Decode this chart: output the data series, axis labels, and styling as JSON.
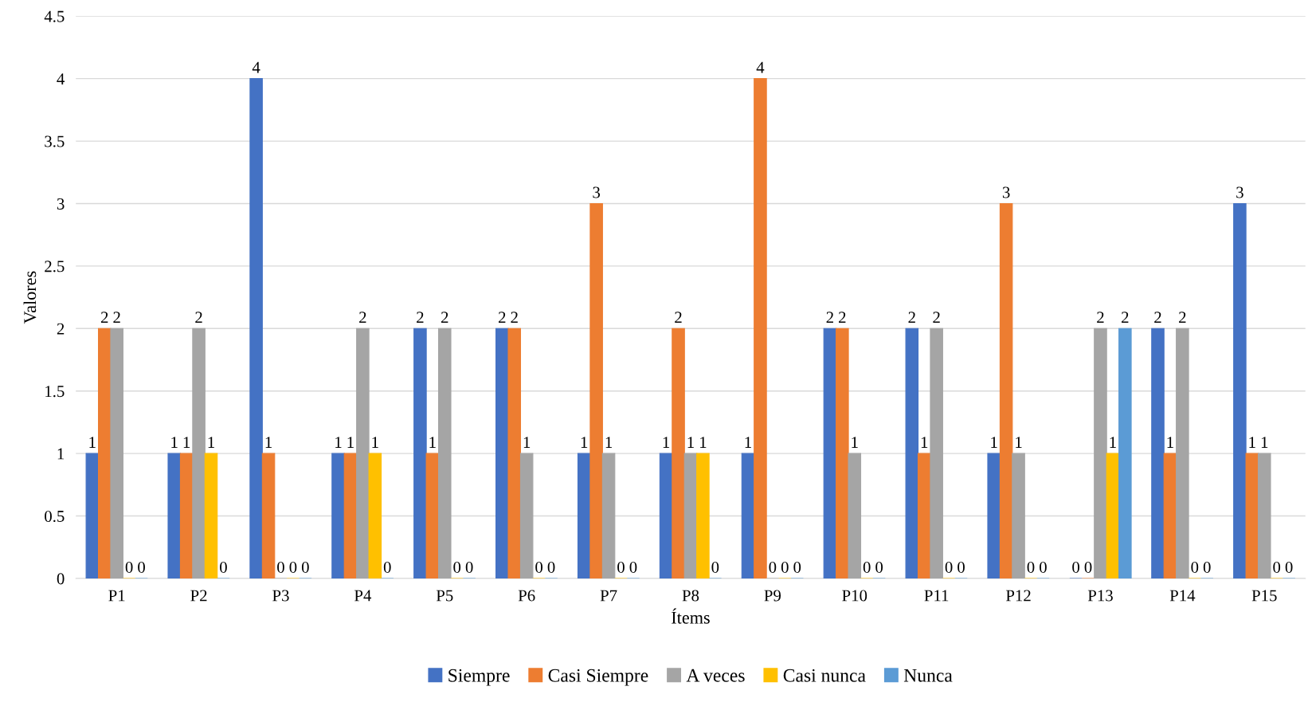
{
  "chart_data": {
    "type": "bar",
    "xlabel": "Ítems",
    "ylabel": "Valores",
    "categories": [
      "P1",
      "P2",
      "P3",
      "P4",
      "P5",
      "P6",
      "P7",
      "P8",
      "P9",
      "P10",
      "P11",
      "P12",
      "P13",
      "P14",
      "P15"
    ],
    "series": [
      {
        "name": "Siempre",
        "color": "#4472c4",
        "values": [
          1,
          1,
          4,
          1,
          2,
          2,
          1,
          1,
          1,
          2,
          2,
          1,
          0,
          2,
          3
        ]
      },
      {
        "name": "Casi Siempre",
        "color": "#ed7d31",
        "values": [
          2,
          1,
          1,
          1,
          1,
          2,
          3,
          2,
          4,
          2,
          1,
          3,
          0,
          1,
          1
        ]
      },
      {
        "name": "A veces",
        "color": "#a5a5a5",
        "values": [
          2,
          2,
          0,
          2,
          2,
          1,
          1,
          1,
          0,
          1,
          2,
          1,
          2,
          2,
          1
        ]
      },
      {
        "name": "Casi nunca",
        "color": "#ffc000",
        "values": [
          0,
          1,
          0,
          1,
          0,
          0,
          0,
          1,
          0,
          0,
          0,
          0,
          1,
          0,
          0
        ]
      },
      {
        "name": "Nunca",
        "color": "#5b9bd5",
        "values": [
          0,
          0,
          0,
          0,
          0,
          0,
          0,
          0,
          0,
          0,
          0,
          0,
          2,
          0,
          0
        ]
      }
    ],
    "ylim": [
      0,
      4.5
    ],
    "yticks": [
      0,
      0.5,
      1,
      1.5,
      2,
      2.5,
      3,
      3.5,
      4,
      4.5
    ],
    "grid": "y",
    "legend": "bottom",
    "data_labels": true
  }
}
